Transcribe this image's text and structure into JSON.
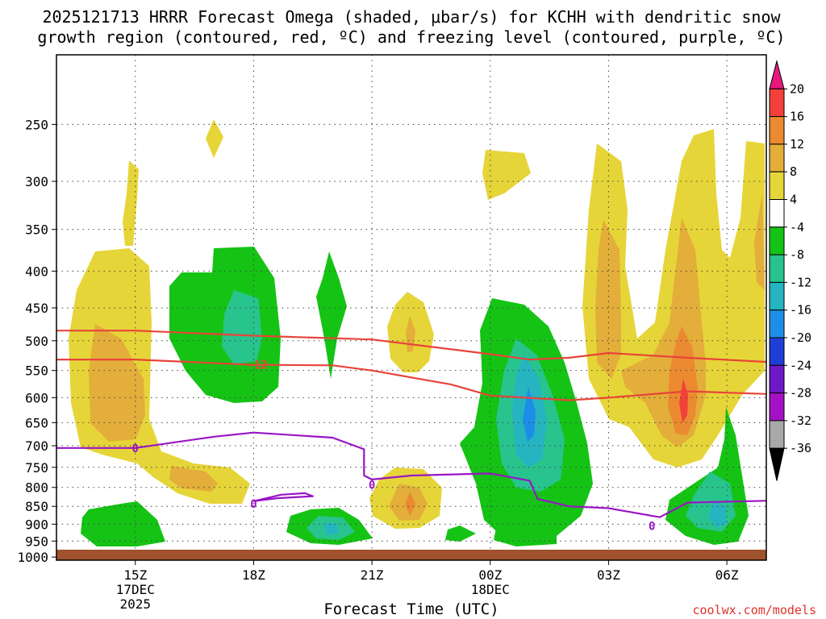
{
  "chart_data": {
    "type": "heatmap",
    "title_line1": "2025121713 HRRR Forecast Omega (shaded, μbar/s) for KCHH with dendritic snow",
    "title_line2": "growth region (contoured, red, ºC) and freezing level (contoured, purple, ºC)",
    "xlabel": "Forecast Time (UTC)",
    "credit": "coolwx.com/models",
    "x_ticks": [
      {
        "hour": 15,
        "label": "15Z",
        "sub1": "17DEC",
        "sub2": "2025"
      },
      {
        "hour": 18,
        "label": "18Z",
        "sub1": "",
        "sub2": ""
      },
      {
        "hour": 21,
        "label": "21Z",
        "sub1": "",
        "sub2": ""
      },
      {
        "hour": 24,
        "label": "00Z",
        "sub1": "18DEC",
        "sub2": ""
      },
      {
        "hour": 27,
        "label": "03Z",
        "sub1": "",
        "sub2": ""
      },
      {
        "hour": 30,
        "label": "06Z",
        "sub1": "",
        "sub2": ""
      }
    ],
    "x_range_hours": [
      13,
      31
    ],
    "y_ticks_hpa": [
      250,
      300,
      350,
      400,
      450,
      500,
      550,
      600,
      650,
      700,
      750,
      800,
      850,
      900,
      950,
      1000
    ],
    "y_range_hpa": [
      1010,
      200
    ],
    "colorbar_levels": [
      20,
      16,
      12,
      8,
      4,
      -4,
      -8,
      -12,
      -16,
      -20,
      -24,
      -28,
      -32,
      -36
    ],
    "colorbar_colors": [
      "#e8177e",
      "#f2413a",
      "#eb8a30",
      "#e3ae3a",
      "#e6d538",
      "#ffffff",
      "#15c315",
      "#27c48e",
      "#25b4c0",
      "#1d8ee8",
      "#1f3ed6",
      "#6f18c8",
      "#a611c6",
      "#a8a8a8",
      "#000000"
    ],
    "contour_label_red": "-12",
    "contour_label_purple": "0",
    "series": [
      {
        "name": "DGZ -12C upper",
        "color": "#e8443a",
        "points": [
          [
            13,
            484
          ],
          [
            15,
            484
          ],
          [
            18,
            492
          ],
          [
            21,
            498
          ],
          [
            24,
            522
          ],
          [
            25,
            531
          ],
          [
            26,
            528
          ],
          [
            27,
            520
          ],
          [
            29,
            528
          ],
          [
            31,
            535
          ]
        ]
      },
      {
        "name": "DGZ -12C lower",
        "color": "#e8443a",
        "points": [
          [
            13,
            531
          ],
          [
            15,
            531
          ],
          [
            18,
            540
          ],
          [
            20,
            541
          ],
          [
            21,
            550
          ],
          [
            23,
            575
          ],
          [
            24,
            596
          ],
          [
            26,
            605
          ],
          [
            27,
            600
          ],
          [
            29,
            588
          ],
          [
            31,
            593
          ]
        ]
      },
      {
        "name": "Freezing level 0C",
        "color": "#9915c4",
        "points": [
          [
            13,
            705
          ],
          [
            15,
            705
          ],
          [
            17,
            680
          ],
          [
            18,
            671
          ],
          [
            20,
            682
          ],
          [
            20.8,
            708
          ],
          [
            20.8,
            770
          ],
          [
            21,
            780
          ],
          [
            22,
            770
          ],
          [
            24,
            765
          ],
          [
            25,
            783
          ],
          [
            25.2,
            830
          ],
          [
            26,
            850
          ],
          [
            27,
            855
          ],
          [
            28.3,
            880
          ],
          [
            29,
            840
          ],
          [
            31,
            835
          ]
        ]
      },
      {
        "name": "Freezing level 0C (small loop)",
        "color": "#9915c4",
        "points": [
          [
            18,
            836
          ],
          [
            18.7,
            819
          ],
          [
            19.3,
            815
          ],
          [
            19.5,
            823
          ],
          [
            18.6,
            828
          ],
          [
            18,
            836
          ]
        ]
      }
    ],
    "omega_cells_ubar_per_s": [
      {
        "center_hour": 14.0,
        "center_hpa": 610,
        "peak": 8
      },
      {
        "center_hour": 16.0,
        "center_hpa": 810,
        "peak": 8
      },
      {
        "center_hour": 15.0,
        "center_hpa": 330,
        "peak": 4
      },
      {
        "center_hour": 17.0,
        "center_hpa": 268,
        "peak": 4
      },
      {
        "center_hour": 16.8,
        "center_hpa": 475,
        "peak": -12
      },
      {
        "center_hour": 19.8,
        "center_hpa": 460,
        "peak": -4
      },
      {
        "center_hour": 22.0,
        "center_hpa": 515,
        "peak": 8
      },
      {
        "center_hour": 22.0,
        "center_hpa": 865,
        "peak": 12
      },
      {
        "center_hour": 24.0,
        "center_hpa": 300,
        "peak": 4
      },
      {
        "center_hour": 25.0,
        "center_hpa": 650,
        "peak": -16
      },
      {
        "center_hour": 27.2,
        "center_hpa": 450,
        "peak": 8
      },
      {
        "center_hour": 29.0,
        "center_hpa": 620,
        "peak": 16
      },
      {
        "center_hour": 29.8,
        "center_hpa": 900,
        "peak": -12
      },
      {
        "center_hour": 15.0,
        "center_hpa": 930,
        "peak": -4
      },
      {
        "center_hour": 19.8,
        "center_hpa": 945,
        "peak": -12
      }
    ]
  }
}
